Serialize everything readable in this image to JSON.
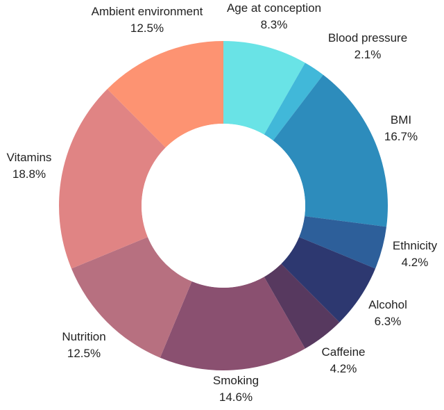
{
  "chart_data": {
    "type": "pie",
    "donut": true,
    "title": "",
    "categories": [
      "Age at conception",
      "Blood pressure",
      "BMI",
      "Ethnicity",
      "Alcohol",
      "Caffeine",
      "Smoking",
      "Nutrition",
      "Vitamins",
      "Ambient environment"
    ],
    "values": [
      8.3,
      2.1,
      16.7,
      4.2,
      6.3,
      4.2,
      14.6,
      12.5,
      18.8,
      12.5
    ],
    "value_labels": [
      "8.3%",
      "2.1%",
      "16.7%",
      "4.2%",
      "6.3%",
      "4.2%",
      "14.6%",
      "12.5%",
      "18.8%",
      "12.5%"
    ],
    "colors": [
      "#69e3e6",
      "#41b8d9",
      "#2d8cbc",
      "#2d5f9a",
      "#2d3870",
      "#57395f",
      "#8a5070",
      "#b77080",
      "#e08484",
      "#fd9372"
    ],
    "start_angle": "12 o'clock",
    "direction": "clockwise"
  }
}
